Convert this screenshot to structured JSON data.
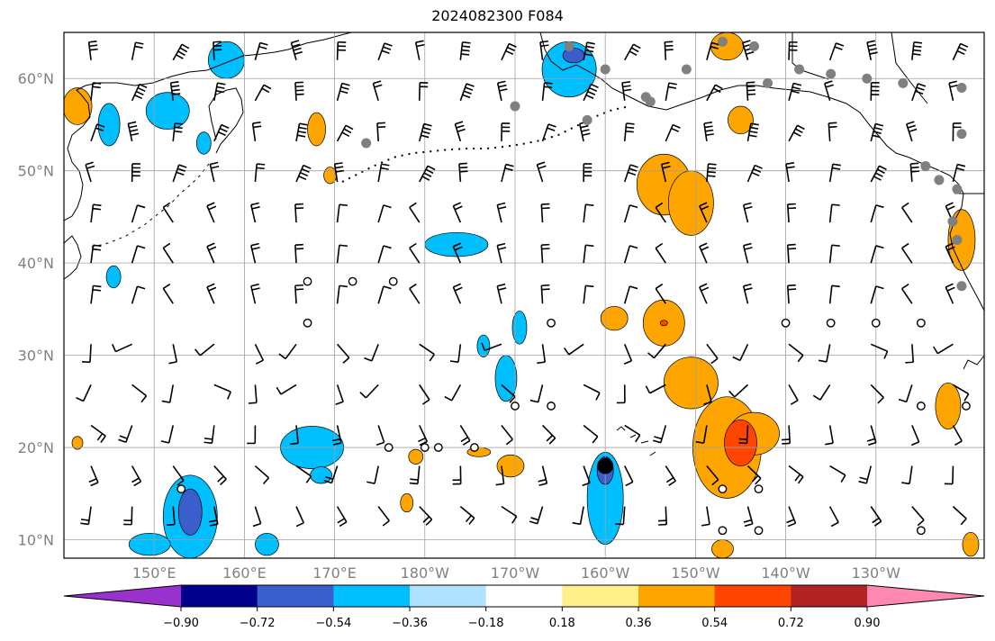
{
  "title": "2024082300 F084",
  "chart_data": {
    "type": "map",
    "title": "2024082300 F084",
    "projection": "plate-carree",
    "lon_range": [
      140,
      242
    ],
    "lat_range": [
      8,
      65
    ],
    "lon_ticks": [
      {
        "value": 150,
        "label": "150°E"
      },
      {
        "value": 160,
        "label": "160°E"
      },
      {
        "value": 170,
        "label": "170°E"
      },
      {
        "value": 180,
        "label": "180°W"
      },
      {
        "value": 190,
        "label": "170°W"
      },
      {
        "value": 200,
        "label": "160°W"
      },
      {
        "value": 210,
        "label": "150°W"
      },
      {
        "value": 220,
        "label": "140°W"
      },
      {
        "value": 230,
        "label": "130°W"
      }
    ],
    "lat_ticks": [
      {
        "value": 10,
        "label": "10°N"
      },
      {
        "value": 20,
        "label": "20°N"
      },
      {
        "value": 30,
        "label": "30°N"
      },
      {
        "value": 40,
        "label": "40°N"
      },
      {
        "value": 50,
        "label": "50°N"
      },
      {
        "value": 60,
        "label": "60°N"
      }
    ],
    "grid": true,
    "colorbar": {
      "orientation": "horizontal",
      "extend": "both",
      "levels": [
        -0.9,
        -0.72,
        -0.54,
        -0.36,
        -0.18,
        0.18,
        0.36,
        0.54,
        0.72,
        0.9
      ],
      "tick_labels": [
        "−0.90",
        "−0.72",
        "−0.54",
        "−0.36",
        "−0.18",
        "0.18",
        "0.36",
        "0.54",
        "0.72",
        "0.90"
      ],
      "colors": [
        "#9932cc",
        "#00008b",
        "#3a5fcd",
        "#00bfff",
        "#b0e2ff",
        "#ffffff",
        "#fff08a",
        "#ffa500",
        "#ff4500",
        "#b22222",
        "#ff88b0"
      ]
    },
    "regions": [
      {
        "level": -0.54,
        "lon": 145.0,
        "lat": 55.0,
        "rx": 1.2,
        "ry": 2.3
      },
      {
        "level": -0.54,
        "lon": 151.5,
        "lat": 56.5,
        "rx": 2.4,
        "ry": 2.0
      },
      {
        "level": -0.54,
        "lon": 158.0,
        "lat": 62.0,
        "rx": 2.0,
        "ry": 2.0
      },
      {
        "level": -0.54,
        "lon": 155.5,
        "lat": 53.0,
        "rx": 0.8,
        "ry": 1.2
      },
      {
        "level": -0.54,
        "lon": 145.5,
        "lat": 38.5,
        "rx": 0.8,
        "ry": 1.2
      },
      {
        "level": -0.54,
        "lon": 196.0,
        "lat": 61.0,
        "rx": 3.0,
        "ry": 3.0
      },
      {
        "level": -0.72,
        "lon": 196.5,
        "lat": 62.5,
        "rx": 1.2,
        "ry": 0.8
      },
      {
        "level": -0.54,
        "lon": 183.5,
        "lat": 42.0,
        "rx": 3.5,
        "ry": 1.3
      },
      {
        "level": -0.54,
        "lon": 190.5,
        "lat": 33.0,
        "rx": 0.8,
        "ry": 1.8
      },
      {
        "level": -0.54,
        "lon": 189.0,
        "lat": 27.5,
        "rx": 1.2,
        "ry": 2.5
      },
      {
        "level": -0.54,
        "lon": 186.5,
        "lat": 31.0,
        "rx": 0.7,
        "ry": 1.2
      },
      {
        "level": -0.54,
        "lon": 167.5,
        "lat": 20.0,
        "rx": 3.5,
        "ry": 2.3
      },
      {
        "level": -0.54,
        "lon": 168.5,
        "lat": 17.0,
        "rx": 1.2,
        "ry": 0.9
      },
      {
        "level": -0.54,
        "lon": 154.0,
        "lat": 12.5,
        "rx": 3.0,
        "ry": 4.5
      },
      {
        "level": -0.72,
        "lon": 154.0,
        "lat": 13.0,
        "rx": 1.3,
        "ry": 2.5
      },
      {
        "level": -0.54,
        "lon": 149.5,
        "lat": 9.5,
        "rx": 2.3,
        "ry": 1.2
      },
      {
        "level": -0.54,
        "lon": 162.5,
        "lat": 9.5,
        "rx": 1.3,
        "ry": 1.2
      },
      {
        "level": -0.54,
        "lon": 200.0,
        "lat": 14.5,
        "rx": 2.0,
        "ry": 5.0
      },
      {
        "level": -0.72,
        "lon": 200.0,
        "lat": 17.5,
        "rx": 0.9,
        "ry": 1.5
      },
      {
        "level": 0.36,
        "lon": 141.5,
        "lat": 57.0,
        "rx": 1.6,
        "ry": 2.0
      },
      {
        "level": 0.36,
        "lon": 168.0,
        "lat": 54.5,
        "rx": 1.0,
        "ry": 1.8
      },
      {
        "level": 0.36,
        "lon": 169.5,
        "lat": 49.5,
        "rx": 0.7,
        "ry": 0.9
      },
      {
        "level": 0.36,
        "lon": 213.5,
        "lat": 63.5,
        "rx": 1.8,
        "ry": 1.5
      },
      {
        "level": 0.36,
        "lon": 215.0,
        "lat": 55.5,
        "rx": 1.4,
        "ry": 1.5
      },
      {
        "level": 0.36,
        "lon": 206.5,
        "lat": 48.5,
        "rx": 3.0,
        "ry": 3.3
      },
      {
        "level": 0.36,
        "lon": 209.5,
        "lat": 46.5,
        "rx": 2.5,
        "ry": 3.5
      },
      {
        "level": 0.36,
        "lon": 239.5,
        "lat": 42.5,
        "rx": 1.5,
        "ry": 3.3
      },
      {
        "level": 0.36,
        "lon": 201.0,
        "lat": 34.0,
        "rx": 1.5,
        "ry": 1.3
      },
      {
        "level": 0.36,
        "lon": 206.5,
        "lat": 33.5,
        "rx": 2.3,
        "ry": 2.5
      },
      {
        "level": 0.54,
        "lon": 206.5,
        "lat": 33.5,
        "rx": 0.4,
        "ry": 0.3
      },
      {
        "level": 0.36,
        "lon": 209.5,
        "lat": 27.0,
        "rx": 3.0,
        "ry": 2.8
      },
      {
        "level": 0.36,
        "lon": 213.5,
        "lat": 20.0,
        "rx": 3.8,
        "ry": 5.5
      },
      {
        "level": 0.36,
        "lon": 216.5,
        "lat": 21.5,
        "rx": 2.8,
        "ry": 2.3
      },
      {
        "level": 0.54,
        "lon": 215.0,
        "lat": 20.5,
        "rx": 1.8,
        "ry": 2.5
      },
      {
        "level": 0.36,
        "lon": 238.0,
        "lat": 24.5,
        "rx": 1.4,
        "ry": 2.5
      },
      {
        "level": 0.36,
        "lon": 186.0,
        "lat": 19.5,
        "rx": 1.3,
        "ry": 0.5
      },
      {
        "level": 0.36,
        "lon": 189.5,
        "lat": 18.0,
        "rx": 1.5,
        "ry": 1.2
      },
      {
        "level": 0.36,
        "lon": 178.0,
        "lat": 14.0,
        "rx": 0.7,
        "ry": 1.0
      },
      {
        "level": 0.36,
        "lon": 179.0,
        "lat": 19.0,
        "rx": 0.8,
        "ry": 0.8
      },
      {
        "level": 0.36,
        "lon": 213.0,
        "lat": 9.0,
        "rx": 1.2,
        "ry": 1.0
      },
      {
        "level": 0.36,
        "lon": 240.5,
        "lat": 9.5,
        "rx": 0.9,
        "ry": 1.3
      },
      {
        "level": 0.36,
        "lon": 141.5,
        "lat": 20.5,
        "rx": 0.6,
        "ry": 0.7
      }
    ],
    "calm_markers": [
      [
        167,
        38
      ],
      [
        172,
        38
      ],
      [
        176.5,
        38
      ],
      [
        167,
        33.5
      ],
      [
        194,
        33.5
      ],
      [
        220,
        33.5
      ],
      [
        225,
        33.5
      ],
      [
        230,
        33.5
      ],
      [
        235,
        33.5
      ],
      [
        190,
        24.5
      ],
      [
        194,
        24.5
      ],
      [
        235,
        24.5
      ],
      [
        240,
        24.5
      ],
      [
        176,
        20
      ],
      [
        180,
        20
      ],
      [
        181.5,
        20
      ],
      [
        185.5,
        20
      ],
      [
        153,
        15.5
      ],
      [
        213,
        15.5
      ],
      [
        217,
        15.5
      ],
      [
        213,
        11
      ],
      [
        217,
        11
      ],
      [
        235,
        11
      ]
    ],
    "station_markers": [
      [
        196,
        63.5
      ],
      [
        200,
        61
      ],
      [
        204.5,
        58
      ],
      [
        209,
        61
      ],
      [
        213,
        64
      ],
      [
        216.5,
        63.5
      ],
      [
        221.5,
        61
      ],
      [
        225,
        60.5
      ],
      [
        229,
        60
      ],
      [
        233,
        59.5
      ],
      [
        239.5,
        59
      ],
      [
        190,
        57
      ],
      [
        205,
        57.5
      ],
      [
        198,
        55.5
      ],
      [
        173.5,
        53
      ],
      [
        218,
        59.5
      ],
      [
        239.5,
        54
      ],
      [
        235.5,
        50.5
      ],
      [
        237,
        49
      ],
      [
        239,
        48
      ],
      [
        238.5,
        44.5
      ],
      [
        239,
        42.5
      ],
      [
        239.5,
        37.5
      ]
    ],
    "storm_center": [
      200,
      18
    ]
  }
}
